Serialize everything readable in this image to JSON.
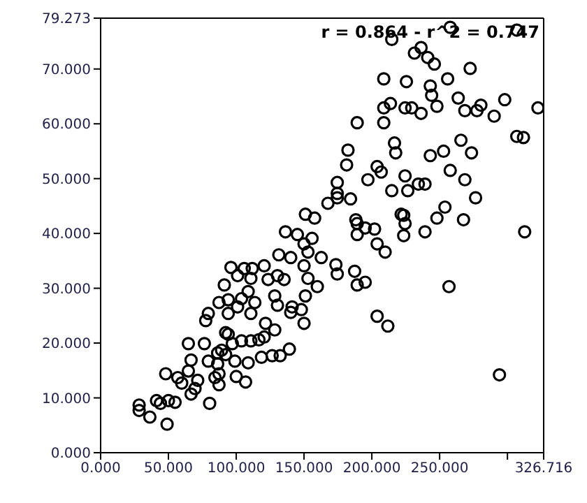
{
  "chart_data": {
    "type": "scatter",
    "marker": "circle",
    "legend": false,
    "annotations": [
      "r = 0.864 - r^2 = 0.747"
    ],
    "xlim": [
      0,
      326.716
    ],
    "ylim": [
      0,
      79.273
    ],
    "xticks": [
      {
        "value": 0,
        "label": "0.000"
      },
      {
        "value": 50,
        "label": "50.000"
      },
      {
        "value": 100,
        "label": "100.000"
      },
      {
        "value": 150,
        "label": "150.000"
      },
      {
        "value": 200,
        "label": "200.000"
      },
      {
        "value": 250,
        "label": "250.000"
      },
      {
        "value": 300,
        "label": null
      },
      {
        "value": 326.716,
        "label": "326.716"
      }
    ],
    "yticks": [
      {
        "value": 0,
        "label": "0.000"
      },
      {
        "value": 10,
        "label": "10.000"
      },
      {
        "value": 20,
        "label": "20.000"
      },
      {
        "value": 30,
        "label": "30.000"
      },
      {
        "value": 40,
        "label": "40.000"
      },
      {
        "value": 50,
        "label": "50.000"
      },
      {
        "value": 60,
        "label": "60.000"
      },
      {
        "value": 70,
        "label": "70.000"
      },
      {
        "value": 79.273,
        "label": "79.273"
      }
    ],
    "series": [
      {
        "color": "#000000",
        "x": [
          28.4,
          28.4,
          36.3,
          41.2,
          44.1,
          49.0,
          54.9,
          50.0,
          48.0,
          56.9,
          59.8,
          64.7,
          66.7,
          64.7,
          71.6,
          69.6,
          66.7,
          76.5,
          79.4,
          80.4,
          84.3,
          87.3,
          87.3,
          86.3,
          92.2,
          99.0,
          100.0,
          106.9,
          108.8,
          97.1,
          103.9,
          110.8,
          116.7,
          120.6,
          118.6,
          126.5,
          132.4,
          139.2,
          121.6,
          128.4,
          79.4,
          77.5,
          87.3,
          94.1,
          94.1,
          101.0,
          103.9,
          110.8,
          113.7,
          108.8,
          110.8,
          111.8,
          105.9,
          96.1,
          101.0,
          120.6,
          123.5,
          130.4,
          135.3,
          128.4,
          130.4,
          140.2,
          148.0,
          150.0,
          151.0,
          152.9,
          150.0,
          131.4,
          140.2,
          136.3,
          145.1,
          150.0,
          151.0,
          157.8,
          155.9,
          162.7,
          159.8,
          92.2,
          89.2,
          94.1,
          91.2,
          86.3,
          167.6,
          174.5,
          184.3,
          189.2,
          189.2,
          202.0,
          195.1,
          173.5,
          174.5,
          187.3,
          189.2,
          195.1,
          152.9,
          203.9,
          209.8,
          223.5,
          224.5,
          223.5,
          239.2,
          248.0,
          253.9,
          267.6,
          276.5,
          312.7,
          256.9,
          203.9,
          211.8,
          294.1,
          141.2,
          257.8,
          214.7,
          306.9,
          236.3,
          231.4,
          241.2,
          246.1,
          272.5,
          208.8,
          225.5,
          243.1,
          255.9,
          244.1,
          263.7,
          280.4,
          298.0,
          290.2,
          322.5,
          208.8,
          213.7,
          208.8,
          189.2,
          224.5,
          229.4,
          236.3,
          248.0,
          268.6,
          277.5,
          306.9,
          311.8,
          182.4,
          216.7,
          217.6,
          265.7,
          273.5,
          243.1,
          252.9,
          181.4,
          203.9,
          206.9,
          197.1,
          224.5,
          214.7,
          226.5,
          234.3,
          239.2,
          257.8,
          268.6,
          174.5,
          174.5,
          221.6,
          188.2
        ],
        "values": [
          8.7,
          7.7,
          6.5,
          9.5,
          9.0,
          5.2,
          9.2,
          9.5,
          14.4,
          13.7,
          12.7,
          14.9,
          16.9,
          19.9,
          13.2,
          11.7,
          10.7,
          19.9,
          16.7,
          9.0,
          13.7,
          14.4,
          12.4,
          18.2,
          17.9,
          16.7,
          13.9,
          12.9,
          16.4,
          19.9,
          20.4,
          20.4,
          20.6,
          21.1,
          17.4,
          17.7,
          17.7,
          18.9,
          23.6,
          22.4,
          25.4,
          24.1,
          27.4,
          27.9,
          25.4,
          26.6,
          28.1,
          25.4,
          27.4,
          29.4,
          31.8,
          33.6,
          33.6,
          33.8,
          32.3,
          34.1,
          31.6,
          32.3,
          31.6,
          28.6,
          26.9,
          25.6,
          26.1,
          23.6,
          28.6,
          31.8,
          34.1,
          36.1,
          35.6,
          40.3,
          39.8,
          38.1,
          43.5,
          42.8,
          39.1,
          35.6,
          30.3,
          21.9,
          18.7,
          21.6,
          30.6,
          16.2,
          45.5,
          46.5,
          46.3,
          41.8,
          39.8,
          40.8,
          41.0,
          34.3,
          32.6,
          33.1,
          30.6,
          31.1,
          36.6,
          38.1,
          36.6,
          43.3,
          41.8,
          39.6,
          40.3,
          42.8,
          44.8,
          42.5,
          46.5,
          40.3,
          30.3,
          24.9,
          23.1,
          14.2,
          26.6,
          77.6,
          75.4,
          77.1,
          73.9,
          72.9,
          72.1,
          70.9,
          70.1,
          68.2,
          67.7,
          66.9,
          68.2,
          65.2,
          64.7,
          63.4,
          64.4,
          61.4,
          62.9,
          62.9,
          63.7,
          60.2,
          60.2,
          62.9,
          62.9,
          61.9,
          63.2,
          62.4,
          62.4,
          57.7,
          57.5,
          55.2,
          56.5,
          54.7,
          57.0,
          54.7,
          54.2,
          55.0,
          52.5,
          52.2,
          51.2,
          49.8,
          50.5,
          47.8,
          47.8,
          49.0,
          49.0,
          51.5,
          49.8,
          49.3,
          47.3,
          43.5,
          42.5
        ]
      }
    ]
  }
}
